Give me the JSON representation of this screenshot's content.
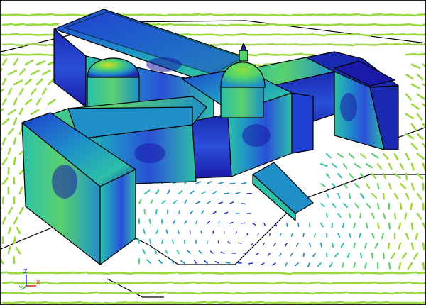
{
  "viewport": {
    "background": "#ffffff",
    "frame_color": "#222222"
  },
  "scene": {
    "subject": "building-wind-flow-simulation",
    "surface_colormap": [
      "#1a1aa8",
      "#2b4fd8",
      "#1f8fc8",
      "#2cc0a8",
      "#4fd36a",
      "#8fe040",
      "#d8e020"
    ],
    "vector_colormap": [
      "#1a30c8",
      "#1f8fc8",
      "#2cc0b0",
      "#5ad070",
      "#9ad840"
    ],
    "edge_color": "#000000"
  },
  "axis_triad": {
    "x_label": "X",
    "y_label": "Y",
    "z_label": "Z",
    "x_color": "#d02020",
    "y_color": "#20a020",
    "z_color": "#2040d0"
  }
}
